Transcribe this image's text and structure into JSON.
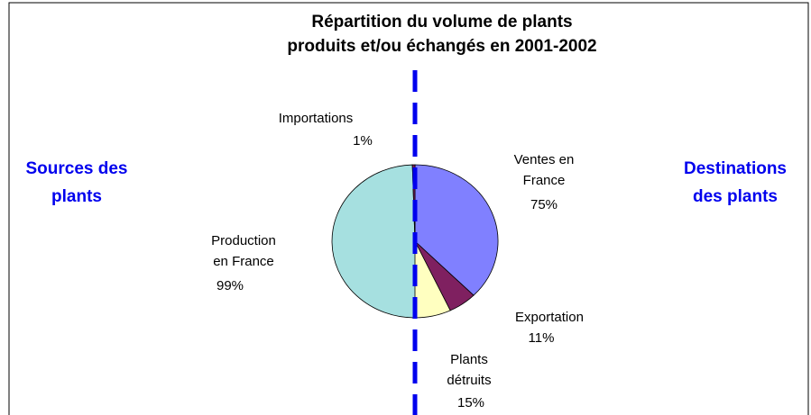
{
  "chart_data": {
    "type": "pie",
    "title": [
      "Répartition du volume de plants",
      "produits et/ou échangés en 2001-2002"
    ],
    "series": [
      {
        "name": [
          "Destinations",
          "des plants"
        ],
        "categories": [
          [
            "Ventes en",
            "France"
          ],
          [
            "Exportation"
          ],
          [
            "Plants",
            "détruits"
          ]
        ],
        "values": [
          75,
          11,
          15
        ],
        "value_labels": [
          "75%",
          "11%",
          "15%"
        ],
        "colors": [
          "#8080ff",
          "#7f2060",
          "#ffffc0"
        ]
      },
      {
        "name": [
          "Sources des",
          "plants"
        ],
        "categories": [
          [
            "Production",
            "en France"
          ],
          [
            "Importations"
          ]
        ],
        "values": [
          99,
          1
        ],
        "value_labels": [
          "99%",
          "1%"
        ],
        "colors": [
          "#a6e0e0",
          "#7f2060"
        ]
      }
    ]
  }
}
